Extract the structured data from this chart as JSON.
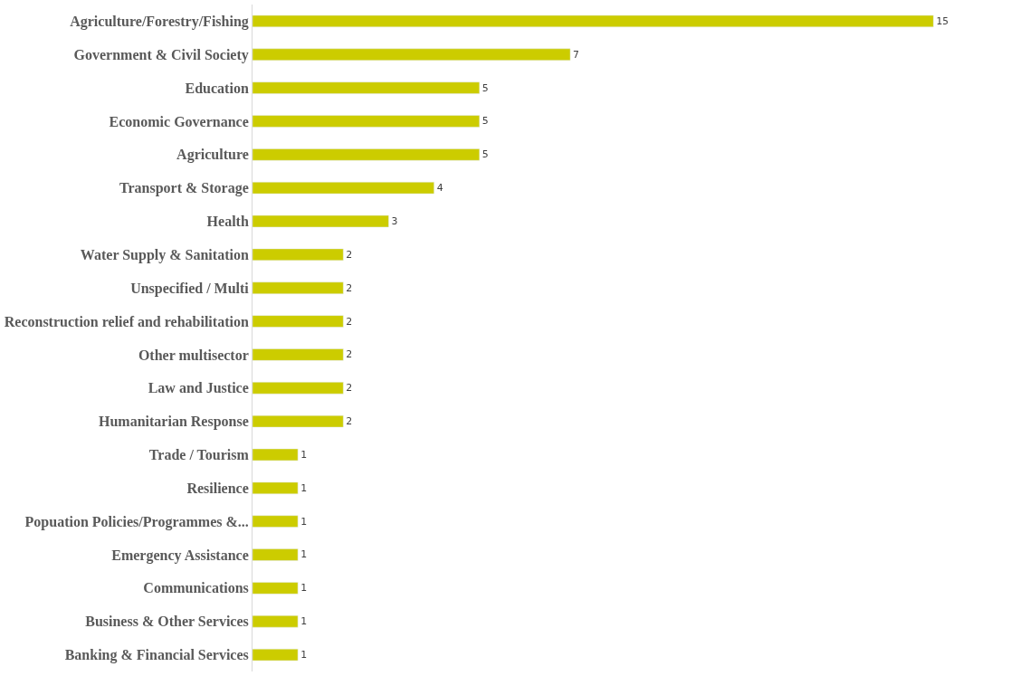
{
  "chart_data": {
    "type": "bar",
    "orientation": "horizontal",
    "data_labels": true,
    "color": "#cccc00",
    "categories": [
      "Agriculture/Forestry/Fishing",
      "Government & Civil Society",
      "Education",
      "Economic Governance",
      "Agriculture",
      "Transport & Storage",
      "Health",
      "Water Supply & Sanitation",
      "Unspecified / Multi",
      "Reconstruction relief and rehabilitation",
      "Other multisector",
      "Law and Justice",
      "Humanitarian Response",
      "Trade / Tourism",
      "Resilience",
      "Popuation Policies/Programmes &...",
      "Emergency Assistance",
      "Communications",
      "Business & Other Services",
      "Banking & Financial Services"
    ],
    "values": [
      15,
      7,
      5,
      5,
      5,
      4,
      3,
      2,
      2,
      2,
      2,
      2,
      2,
      1,
      1,
      1,
      1,
      1,
      1,
      1
    ]
  }
}
